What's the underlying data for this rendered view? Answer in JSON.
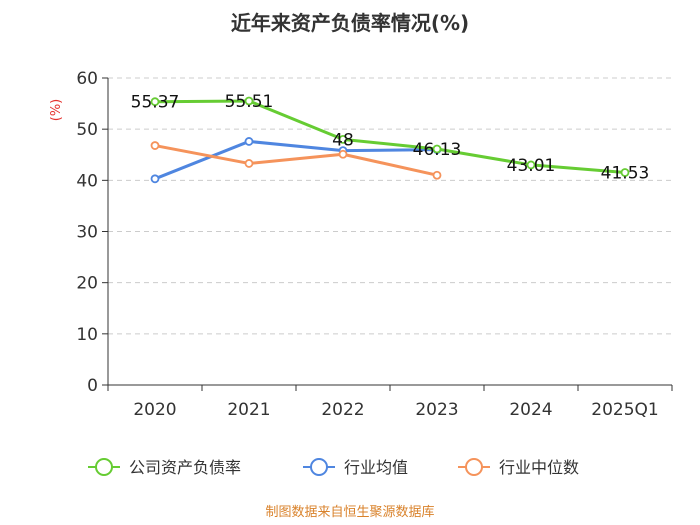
{
  "chart_data": {
    "type": "line",
    "title": "近年来资产负债率情况(%)",
    "ylabel": "(%)",
    "xlabel": "",
    "ylim": [
      0,
      60
    ],
    "yticks": [
      0,
      10,
      20,
      30,
      40,
      50,
      60
    ],
    "grid": true,
    "legend_position": "bottom",
    "categories": [
      "2020",
      "2021",
      "2022",
      "2023",
      "2024",
      "2025Q1"
    ],
    "series": [
      {
        "name": "公司资产负债率",
        "color": "#66cc33",
        "values": [
          55.37,
          55.51,
          48,
          46.13,
          43.01,
          41.53
        ],
        "labels": [
          "55.37",
          "55.51",
          "48",
          "46.13",
          "43.01",
          "41.53"
        ]
      },
      {
        "name": "行业均值",
        "color": "#4f86e0",
        "values": [
          40.3,
          47.6,
          45.8,
          46.0,
          null,
          null
        ]
      },
      {
        "name": "行业中位数",
        "color": "#f5935b",
        "values": [
          46.8,
          43.3,
          45.1,
          41.0,
          null,
          null
        ]
      }
    ],
    "source": "制图数据来自恒生聚源数据库"
  }
}
